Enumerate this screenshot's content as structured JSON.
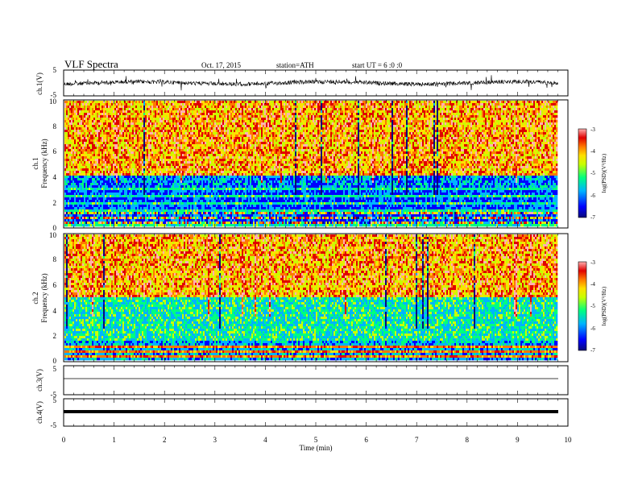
{
  "header": {
    "title": "VLF  Spectra",
    "date": "Oct. 17, 2015",
    "station": "station=ATH",
    "start": "start  UT =   6 :0 :0"
  },
  "axes": {
    "ch1": {
      "label": "ch.1(V)",
      "ticks": [
        "5",
        "-5"
      ]
    },
    "spec1": {
      "label_line1": "ch.1",
      "label_line2": "Frequency  (kHz)",
      "ticks": [
        "0",
        "2",
        "4",
        "6",
        "8",
        "10"
      ]
    },
    "spec2": {
      "label_line1": "ch.2",
      "label_line2": "Frequency  (kHz)",
      "ticks": [
        "0",
        "2",
        "4",
        "6",
        "8",
        "10"
      ]
    },
    "ch3": {
      "label": "ch.3(V)",
      "ticks": [
        "5",
        "-5"
      ]
    },
    "ch4": {
      "label": "ch.4(V)",
      "ticks": [
        "5",
        "-5"
      ]
    },
    "x": {
      "label": "Time  (min)",
      "ticks": [
        "0",
        "1",
        "2",
        "3",
        "4",
        "5",
        "6",
        "7",
        "8",
        "9",
        "10"
      ]
    },
    "colorbar": {
      "label": "log(PSD)(V²/Hz)",
      "ticks": [
        "-3",
        "-4",
        "-5",
        "-6",
        "-7"
      ]
    }
  },
  "chart_data": [
    {
      "type": "line",
      "title": "",
      "ylabel": "ch.1(V)",
      "ylim": [
        -5,
        5
      ],
      "xlim": [
        0,
        10
      ],
      "series": [
        {
          "values_summary": "noisy broadband waveform about 0 V, amplitude ~±1 V, spikes to ~±1.5 V"
        }
      ]
    },
    {
      "type": "heatmap",
      "ylabel": "Frequency  (kHz)",
      "channel": "ch.1",
      "ylim": [
        0,
        10
      ],
      "xlim": [
        0,
        9.8
      ],
      "colorscale": [
        "#0a0a78",
        "#0000ff",
        "#00b4ff",
        "#00ff80",
        "#c8ff00",
        "#ffe000",
        "#ff7800",
        "#e00000",
        "#ffb0b0"
      ],
      "zlim": [
        -7,
        -3
      ],
      "band_summary": "dark blue/low PSD below ~4 kHz with horizontal lines, green-yellow-red broadband 4–10 kHz with vertical sferic streaks"
    },
    {
      "type": "heatmap",
      "ylabel": "Frequency  (kHz)",
      "channel": "ch.2",
      "ylim": [
        0,
        10
      ],
      "xlim": [
        0,
        9.8
      ],
      "zlim": [
        -7,
        -3
      ],
      "band_summary": "cyan/blue bands 0–5 kHz, green-yellow-red 5–10 kHz with vertical sferic streaks, orange lines near 1 kHz"
    },
    {
      "type": "line",
      "ylabel": "ch.3(V)",
      "ylim": [
        -5,
        5
      ],
      "xlim": [
        0,
        10
      ],
      "series": [
        {
          "values_summary": "flat near 0 V"
        }
      ]
    },
    {
      "type": "line",
      "ylabel": "ch.4(V)",
      "ylim": [
        -5,
        5
      ],
      "xlim": [
        0,
        10
      ],
      "series": [
        {
          "values_summary": "thick flat line at ~0 V"
        }
      ]
    }
  ],
  "colors": {
    "frame": "#000000",
    "background": "#ffffff"
  }
}
